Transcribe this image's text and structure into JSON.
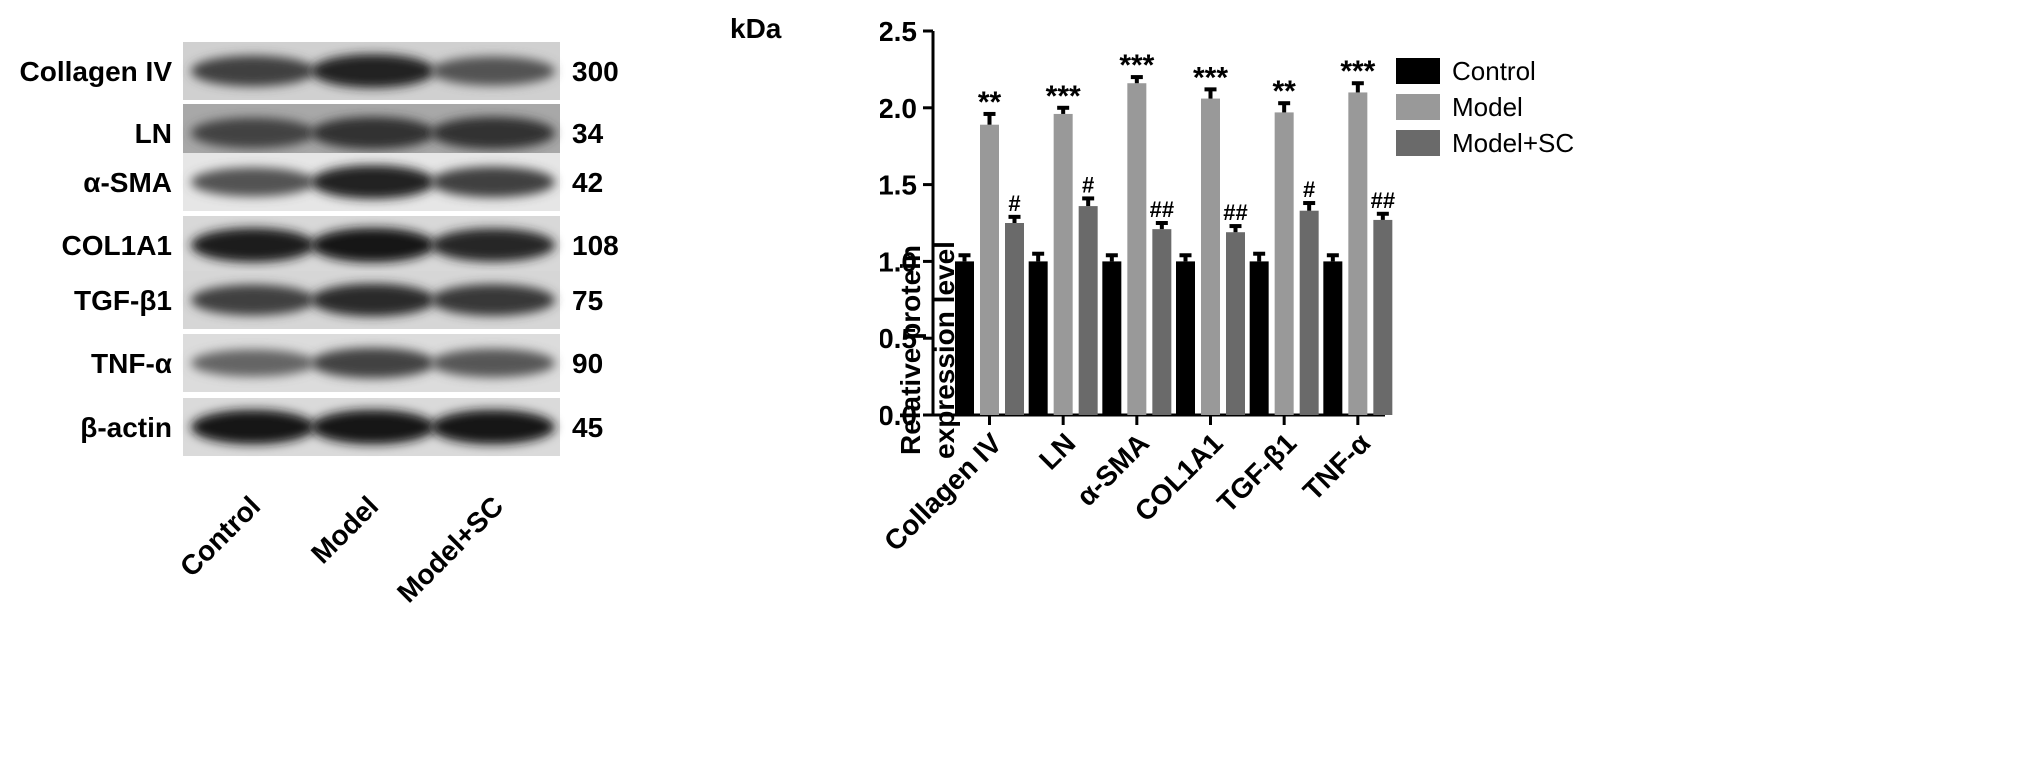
{
  "blot": {
    "kda_header": "kDa",
    "rows": [
      {
        "label": "Collagen IV",
        "kda": "300",
        "intensity": [
          0.72,
          0.88,
          0.62
        ],
        "bg": "#d0d0d0"
      },
      {
        "label": "LN",
        "kda": "34",
        "intensity": [
          0.7,
          0.8,
          0.8
        ],
        "bg": "#a8a8a8"
      },
      {
        "label": "α-SMA",
        "kda": "42",
        "intensity": [
          0.62,
          0.88,
          0.72
        ],
        "bg": "#e6e6e6"
      },
      {
        "label": "COL1A1",
        "kda": "108",
        "intensity": [
          0.9,
          0.92,
          0.85
        ],
        "bg": "#d8d8d8"
      },
      {
        "label": "TGF-β1",
        "kda": "75",
        "intensity": [
          0.72,
          0.82,
          0.76
        ],
        "bg": "#d6d6d6"
      },
      {
        "label": "TNF-α",
        "kda": "90",
        "intensity": [
          0.52,
          0.7,
          0.6
        ],
        "bg": "#dcdcdc"
      },
      {
        "label": "β-actin",
        "kda": "45",
        "intensity": [
          0.92,
          0.92,
          0.92
        ],
        "bg": "#dadada"
      }
    ],
    "lanes": [
      "Control",
      "Model",
      "Model+SC"
    ]
  },
  "chart_data": {
    "type": "bar",
    "categories": [
      "Collagen IV",
      "LN",
      "α-SMA",
      "COL1A1",
      "TGF-β1",
      "TNF-α"
    ],
    "series": [
      {
        "name": "Control",
        "color": "#000000",
        "values": [
          1.0,
          1.0,
          1.0,
          1.0,
          1.0,
          1.0
        ],
        "errors": [
          0.04,
          0.05,
          0.04,
          0.04,
          0.05,
          0.04
        ],
        "annotations": [
          "",
          "",
          "",
          "",
          "",
          ""
        ]
      },
      {
        "name": "Model",
        "color": "#999999",
        "values": [
          1.89,
          1.96,
          2.16,
          2.06,
          1.97,
          2.1
        ],
        "errors": [
          0.07,
          0.04,
          0.04,
          0.06,
          0.06,
          0.06
        ],
        "annotations": [
          "**",
          "***",
          "***",
          "***",
          "**",
          "***"
        ]
      },
      {
        "name": "Model+SC",
        "color": "#6a6a6a",
        "values": [
          1.25,
          1.36,
          1.21,
          1.19,
          1.33,
          1.27
        ],
        "errors": [
          0.04,
          0.05,
          0.04,
          0.04,
          0.05,
          0.04
        ],
        "annotations": [
          "#",
          "#",
          "##",
          "##",
          "#",
          "##"
        ]
      }
    ],
    "ylabel_line1": "Relative protein",
    "ylabel_line2": "expression level",
    "ylim": [
      0,
      2.5
    ],
    "yticks": [
      "0.0",
      "0.5",
      "1.0",
      "1.5",
      "2.0",
      "2.5"
    ],
    "legend_position": "top-right",
    "grid": false
  }
}
